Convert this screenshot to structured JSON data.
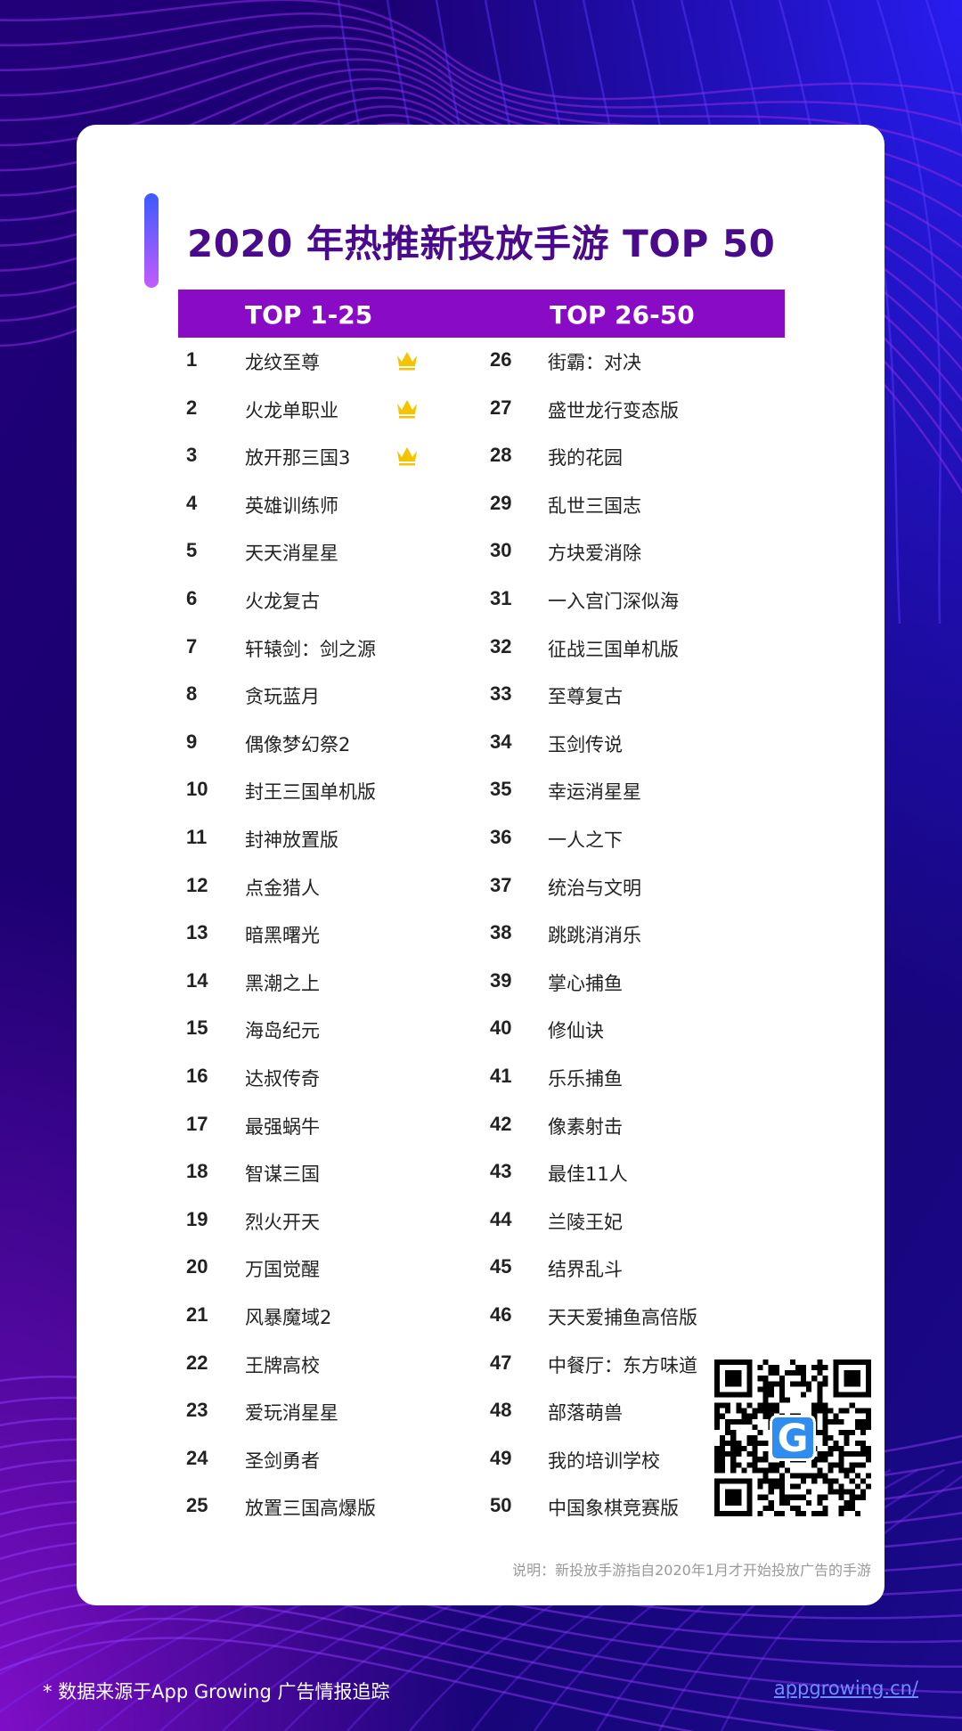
{
  "title": "2020 年热推新投放手游 TOP 50",
  "colors": {
    "accent_purple": "#8a0bc6",
    "title_purple": "#4a0a8c",
    "crown_gold": "#f5c400",
    "link_blue": "#6f8cff"
  },
  "header": {
    "left": "TOP 1-25",
    "right": "TOP 26-50"
  },
  "left_list": [
    {
      "rank": "1",
      "name": "龙纹至尊",
      "crown": true
    },
    {
      "rank": "2",
      "name": "火龙单职业",
      "crown": true
    },
    {
      "rank": "3",
      "name": "放开那三国3",
      "crown": true
    },
    {
      "rank": "4",
      "name": "英雄训练师"
    },
    {
      "rank": "5",
      "name": "天天消星星"
    },
    {
      "rank": "6",
      "name": "火龙复古"
    },
    {
      "rank": "7",
      "name": "轩辕剑：剑之源"
    },
    {
      "rank": "8",
      "name": "贪玩蓝月"
    },
    {
      "rank": "9",
      "name": "偶像梦幻祭2"
    },
    {
      "rank": "10",
      "name": "封王三国单机版"
    },
    {
      "rank": "11",
      "name": "封神放置版"
    },
    {
      "rank": "12",
      "name": "点金猎人"
    },
    {
      "rank": "13",
      "name": "暗黑曙光"
    },
    {
      "rank": "14",
      "name": "黑潮之上"
    },
    {
      "rank": "15",
      "name": "海岛纪元"
    },
    {
      "rank": "16",
      "name": "达叔传奇"
    },
    {
      "rank": "17",
      "name": "最强蜗牛"
    },
    {
      "rank": "18",
      "name": "智谋三国"
    },
    {
      "rank": "19",
      "name": "烈火开天"
    },
    {
      "rank": "20",
      "name": "万国觉醒"
    },
    {
      "rank": "21",
      "name": "风暴魔域2"
    },
    {
      "rank": "22",
      "name": "王牌高校"
    },
    {
      "rank": "23",
      "name": "爱玩消星星"
    },
    {
      "rank": "24",
      "name": "圣剑勇者"
    },
    {
      "rank": "25",
      "name": "放置三国高爆版"
    }
  ],
  "right_list": [
    {
      "rank": "26",
      "name": "街霸：对决"
    },
    {
      "rank": "27",
      "name": "盛世龙行变态版"
    },
    {
      "rank": "28",
      "name": "我的花园"
    },
    {
      "rank": "29",
      "name": "乱世三国志"
    },
    {
      "rank": "30",
      "name": "方块爱消除"
    },
    {
      "rank": "31",
      "name": "一入宫门深似海"
    },
    {
      "rank": "32",
      "name": "征战三国单机版"
    },
    {
      "rank": "33",
      "name": "至尊复古"
    },
    {
      "rank": "34",
      "name": "玉剑传说"
    },
    {
      "rank": "35",
      "name": "幸运消星星"
    },
    {
      "rank": "36",
      "name": "一人之下"
    },
    {
      "rank": "37",
      "name": "统治与文明"
    },
    {
      "rank": "38",
      "name": "跳跳消消乐"
    },
    {
      "rank": "39",
      "name": "掌心捕鱼"
    },
    {
      "rank": "40",
      "name": "修仙诀"
    },
    {
      "rank": "41",
      "name": "乐乐捕鱼"
    },
    {
      "rank": "42",
      "name": "像素射击"
    },
    {
      "rank": "43",
      "name": "最佳11人"
    },
    {
      "rank": "44",
      "name": "兰陵王妃"
    },
    {
      "rank": "45",
      "name": "结界乱斗"
    },
    {
      "rank": "46",
      "name": "天天爱捕鱼高倍版"
    },
    {
      "rank": "47",
      "name": "中餐厅：东方味道"
    },
    {
      "rank": "48",
      "name": "部落萌兽"
    },
    {
      "rank": "49",
      "name": "我的培训学校"
    },
    {
      "rank": "50",
      "name": "中国象棋竞赛版"
    }
  ],
  "note": "说明：新投放手游指自2020年1月才开始投放广告的手游",
  "footer": {
    "source": "* 数据来源于App Growing 广告情报追踪",
    "link": "appgrowing.cn/"
  },
  "qr_logo_letter": "G"
}
